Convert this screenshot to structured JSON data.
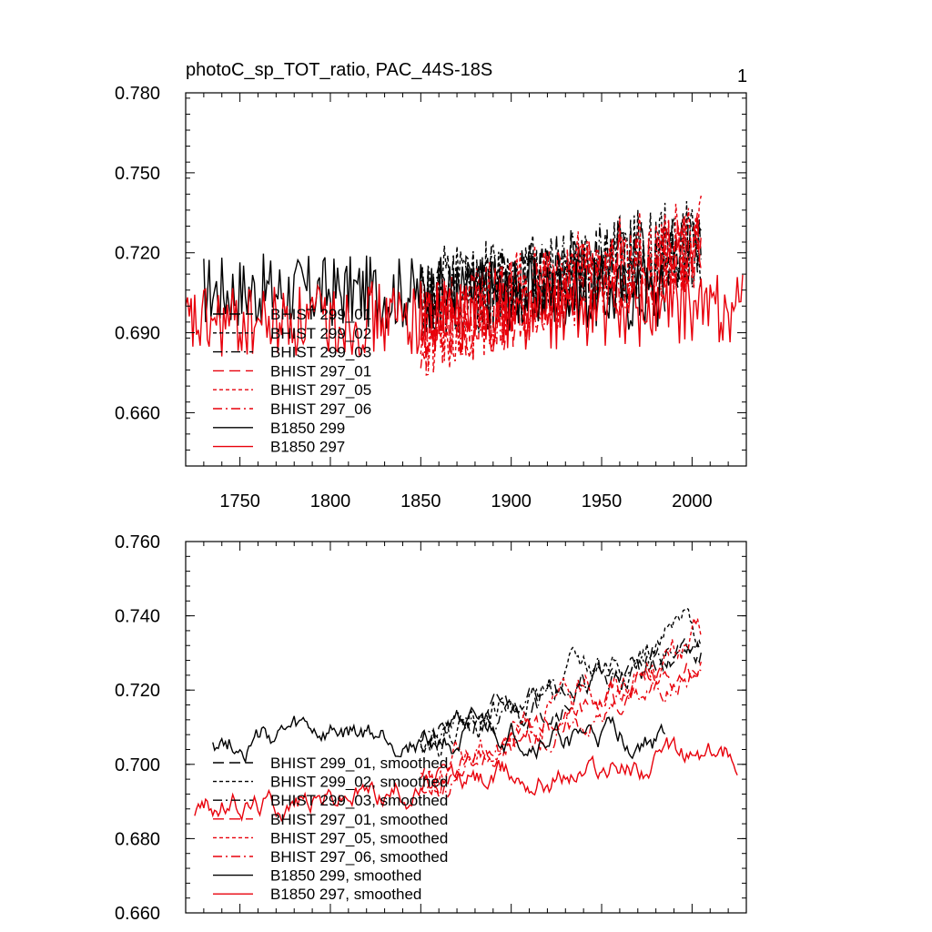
{
  "page": {
    "panel_number": "1"
  },
  "colors": {
    "black": "#000000",
    "red": "#e8000b"
  },
  "chart_data": [
    {
      "type": "line",
      "title": "photoC_sp_TOT_ratio, PAC_44S-18S",
      "xlabel": "",
      "ylabel": "",
      "xlim": [
        1720,
        2030
      ],
      "ylim": [
        0.64,
        0.78
      ],
      "yticks": [
        "0.660",
        "0.690",
        "0.720",
        "0.750",
        "0.780"
      ],
      "xticks": [
        "1750",
        "1800",
        "1850",
        "1900",
        "1950",
        "2000"
      ],
      "legend_position": "bottom-left",
      "series": [
        {
          "name": "BHIST 299_01",
          "color": "#000000",
          "dash": "long",
          "x_range": [
            1850,
            2005
          ],
          "trend": [
            0.702,
            0.722
          ],
          "noise": 0.016,
          "seed": 11
        },
        {
          "name": "BHIST 299_02",
          "color": "#000000",
          "dash": "short",
          "x_range": [
            1850,
            2005
          ],
          "trend": [
            0.703,
            0.724
          ],
          "noise": 0.018,
          "seed": 12
        },
        {
          "name": "BHIST 299_03",
          "color": "#000000",
          "dash": "dashdot",
          "x_range": [
            1850,
            2005
          ],
          "trend": [
            0.702,
            0.723
          ],
          "noise": 0.016,
          "seed": 13
        },
        {
          "name": "BHIST 297_01",
          "color": "#e8000b",
          "dash": "long",
          "x_range": [
            1850,
            2005
          ],
          "trend": [
            0.69,
            0.722
          ],
          "noise": 0.016,
          "seed": 14
        },
        {
          "name": "BHIST 297_05",
          "color": "#e8000b",
          "dash": "short",
          "x_range": [
            1850,
            2005
          ],
          "trend": [
            0.691,
            0.725
          ],
          "noise": 0.018,
          "seed": 15
        },
        {
          "name": "BHIST 297_06",
          "color": "#e8000b",
          "dash": "dashdot",
          "x_range": [
            1850,
            2005
          ],
          "trend": [
            0.69,
            0.721
          ],
          "noise": 0.016,
          "seed": 16
        },
        {
          "name": "B1850 299",
          "color": "#000000",
          "dash": "solid",
          "x_range": [
            1730,
            1985
          ],
          "trend": [
            0.706,
            0.704
          ],
          "noise": 0.014,
          "seed": 17
        },
        {
          "name": "B1850 297",
          "color": "#e8000b",
          "dash": "solid",
          "x_range": [
            1720,
            2028
          ],
          "trend": [
            0.693,
            0.7
          ],
          "noise": 0.014,
          "seed": 18
        }
      ]
    },
    {
      "type": "line",
      "title": "",
      "xlabel": "",
      "ylabel": "",
      "xlim": [
        1720,
        2030
      ],
      "ylim": [
        0.66,
        0.76
      ],
      "yticks": [
        "0.660",
        "0.680",
        "0.700",
        "0.720",
        "0.740",
        "0.760"
      ],
      "xticks": [],
      "legend_position": "bottom-left",
      "series": [
        {
          "name": "BHIST 299_01, smoothed",
          "color": "#000000",
          "dash": "long",
          "x_range": [
            1850,
            2005
          ],
          "trend": [
            0.706,
            0.732
          ],
          "noise": 0.004,
          "seed": 21
        },
        {
          "name": "BHIST 299_02, smoothed",
          "color": "#000000",
          "dash": "short",
          "x_range": [
            1850,
            2005
          ],
          "trend": [
            0.708,
            0.736
          ],
          "noise": 0.005,
          "seed": 22
        },
        {
          "name": "BHIST 299_03, smoothed",
          "color": "#000000",
          "dash": "dashdot",
          "x_range": [
            1850,
            2005
          ],
          "trend": [
            0.705,
            0.733
          ],
          "noise": 0.004,
          "seed": 23
        },
        {
          "name": "BHIST 297_01, smoothed",
          "color": "#e8000b",
          "dash": "long",
          "x_range": [
            1850,
            2005
          ],
          "trend": [
            0.695,
            0.728
          ],
          "noise": 0.004,
          "seed": 24
        },
        {
          "name": "BHIST 297_05, smoothed",
          "color": "#e8000b",
          "dash": "short",
          "x_range": [
            1850,
            2005
          ],
          "trend": [
            0.697,
            0.734
          ],
          "noise": 0.005,
          "seed": 25
        },
        {
          "name": "BHIST 297_06, smoothed",
          "color": "#e8000b",
          "dash": "dashdot",
          "x_range": [
            1850,
            2005
          ],
          "trend": [
            0.694,
            0.726
          ],
          "noise": 0.004,
          "seed": 26
        },
        {
          "name": "B1850 299, smoothed",
          "color": "#000000",
          "dash": "solid",
          "x_range": [
            1735,
            1985
          ],
          "trend": [
            0.707,
            0.707
          ],
          "noise": 0.004,
          "seed": 27
        },
        {
          "name": "B1850 297, smoothed",
          "color": "#e8000b",
          "dash": "solid",
          "x_range": [
            1725,
            2025
          ],
          "trend": [
            0.688,
            0.703
          ],
          "noise": 0.004,
          "seed": 28
        }
      ]
    }
  ]
}
